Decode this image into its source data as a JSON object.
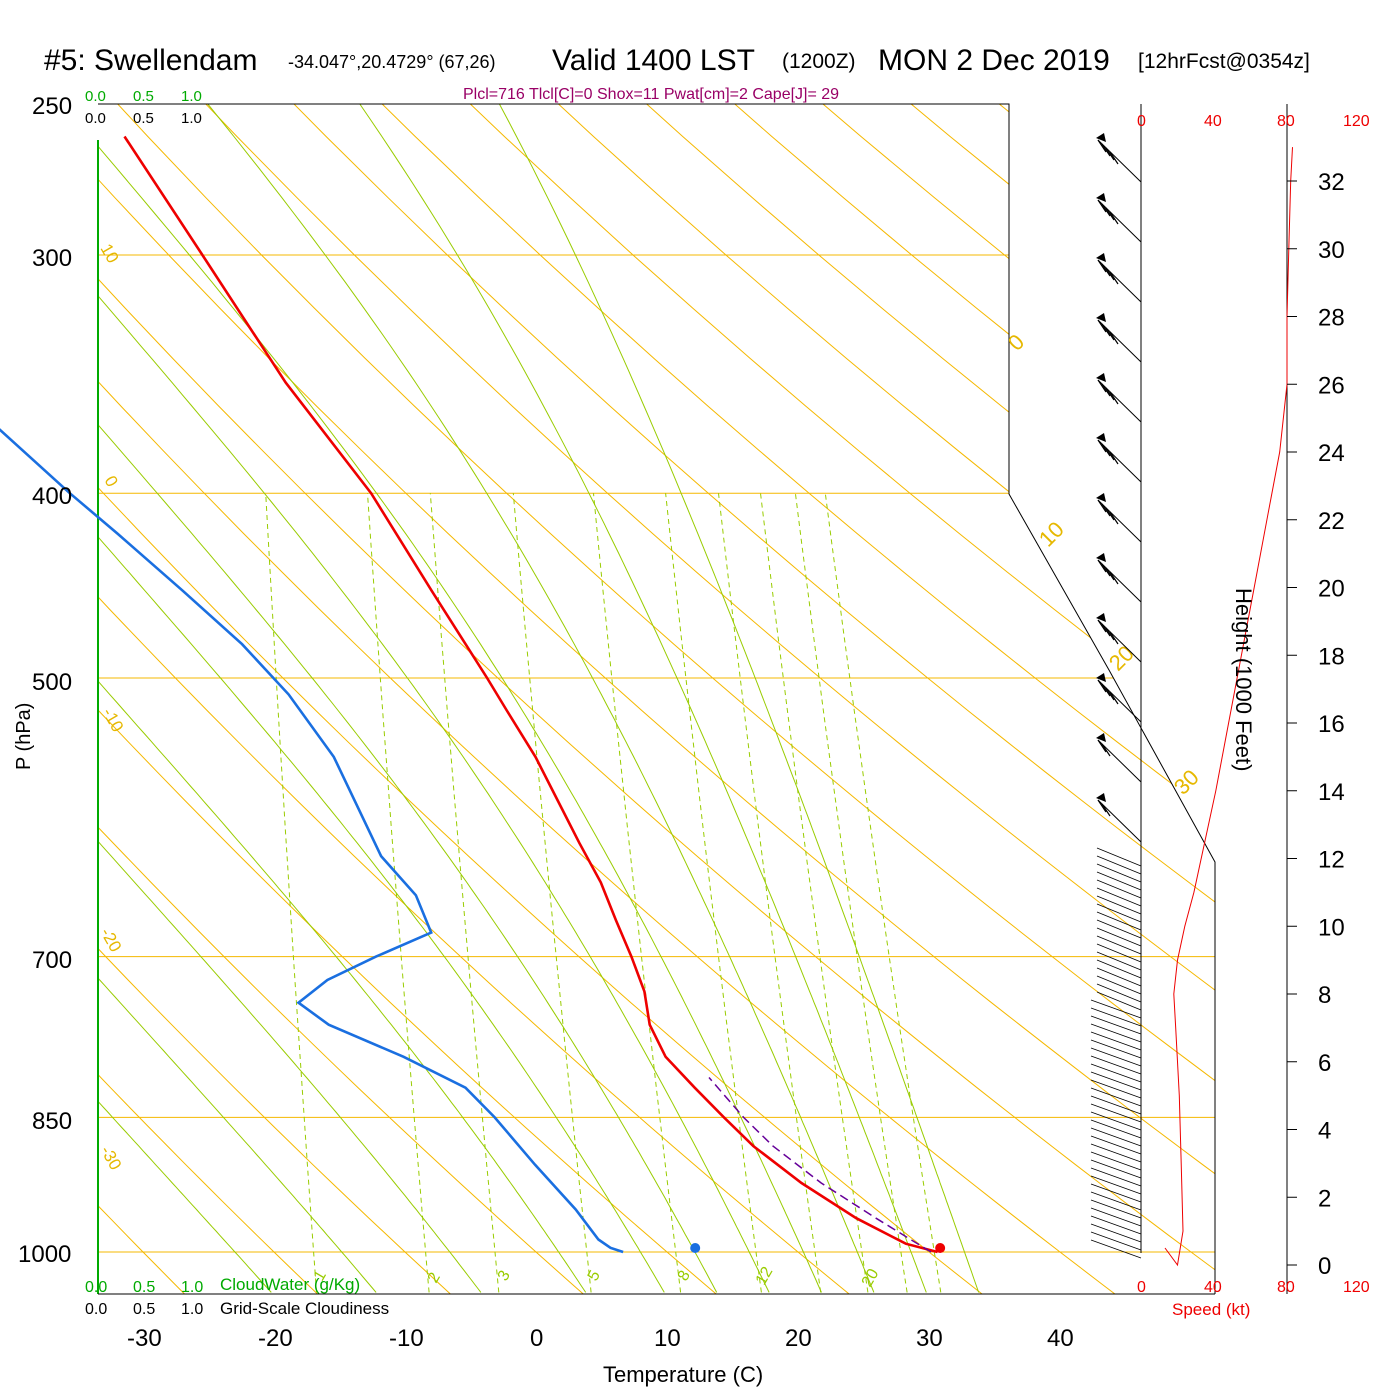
{
  "header": {
    "station": "#5: Swellendam",
    "coords": "-34.047°,20.4729° (67,26)",
    "valid": "Valid 1400 LST",
    "zulu": "(1200Z)",
    "date": "MON 2 Dec 2019",
    "forecast": "[12hrFcst@0354z]",
    "indices": "Plcl=716 Tlcl[C]=0 Shox=11 Pwat[cm]=2 Cape[J]= 29"
  },
  "colors": {
    "isobar": "#f5b800",
    "dry_adiabat": "#f5b800",
    "moist_adiabat": "#99cc00",
    "mixing_ratio": "#99cc00",
    "temperature": "#ee0000",
    "dewpoint": "#1a6fe0",
    "parcel": "#660099",
    "indices_text": "#990066",
    "cloud_axis": "#00aa00",
    "speed_axis": "#ee0000"
  },
  "cloud_axis": {
    "water_ticks": [
      "0.0",
      "0.5",
      "1.0"
    ],
    "cloudiness_ticks": [
      "0.0",
      "0.5",
      "1.0"
    ],
    "cloud_water_label": "CloudWater (g/Kg)",
    "cloudiness_label": "Grid-Scale Cloudiness"
  },
  "wind_speed_axis": {
    "ticks": [
      "0",
      "40",
      "80",
      "120"
    ],
    "label": "Speed (kt)"
  },
  "height_axis": {
    "label": "Height (1000 Feet)",
    "ticks": [
      "0",
      "2",
      "4",
      "6",
      "8",
      "10",
      "12",
      "14",
      "16",
      "18",
      "20",
      "22",
      "24",
      "26",
      "28",
      "30",
      "32"
    ]
  },
  "chart_data": {
    "type": "line",
    "title": "Valid 1400 LST (1200Z) MON 2 Dec 2019",
    "xlabel": "Temperature (C)",
    "ylabel": "P (hPa)",
    "x_ticks": [
      "-30",
      "-20",
      "-10",
      "0",
      "10",
      "20",
      "30",
      "40"
    ],
    "y_ticks": [
      "250",
      "300",
      "400",
      "500",
      "700",
      "850",
      "1000"
    ],
    "xlim": [
      -33,
      43
    ],
    "ylim": [
      1000,
      250
    ],
    "skew": "skew-T log-P",
    "dry_adiabat_labels": [
      "10",
      "0",
      "-10",
      "-20",
      "-30",
      "0",
      "10",
      "20",
      "30"
    ],
    "mixing_ratio_labels": [
      "1",
      "2",
      "3",
      "5",
      "8",
      "12",
      "20"
    ],
    "series": [
      {
        "name": "Temperature",
        "points": [
          [
            1000,
            30.5
          ],
          [
            990,
            28.0
          ],
          [
            960,
            24.0
          ],
          [
            920,
            19.5
          ],
          [
            880,
            15.5
          ],
          [
            850,
            13.0
          ],
          [
            820,
            10.5
          ],
          [
            790,
            8.0
          ],
          [
            760,
            6.5
          ],
          [
            730,
            5.8
          ],
          [
            700,
            4.5
          ],
          [
            670,
            3.0
          ],
          [
            640,
            1.5
          ],
          [
            610,
            -0.5
          ],
          [
            580,
            -2.5
          ],
          [
            550,
            -4.6
          ],
          [
            520,
            -7.2
          ],
          [
            500,
            -9.0
          ],
          [
            450,
            -14.0
          ],
          [
            400,
            -19.5
          ],
          [
            350,
            -27.0
          ],
          [
            300,
            -34.5
          ],
          [
            260,
            -41.5
          ]
        ]
      },
      {
        "name": "Dewpoint",
        "points": [
          [
            1000,
            6.5
          ],
          [
            995,
            5.5
          ],
          [
            985,
            4.5
          ],
          [
            950,
            2.5
          ],
          [
            900,
            -1.0
          ],
          [
            850,
            -4.5
          ],
          [
            820,
            -7.0
          ],
          [
            790,
            -12.0
          ],
          [
            760,
            -18.0
          ],
          [
            740,
            -20.5
          ],
          [
            720,
            -18.5
          ],
          [
            700,
            -15.0
          ],
          [
            680,
            -11.0
          ],
          [
            650,
            -12.5
          ],
          [
            620,
            -15.5
          ],
          [
            580,
            -18.0
          ],
          [
            550,
            -20.0
          ],
          [
            510,
            -24.0
          ],
          [
            480,
            -28.0
          ],
          [
            450,
            -33.0
          ],
          [
            420,
            -38.5
          ],
          [
            400,
            -42.5
          ],
          [
            370,
            -48.5
          ],
          [
            350,
            -52.0
          ],
          [
            320,
            -55.0
          ],
          [
            300,
            -56.0
          ],
          [
            280,
            -57.0
          ],
          [
            260,
            -58.0
          ]
        ]
      },
      {
        "name": "Parcel",
        "points": [
          [
            1000,
            30.0
          ],
          [
            960,
            25.5
          ],
          [
            920,
            21.0
          ],
          [
            880,
            17.0
          ],
          [
            850,
            14.5
          ],
          [
            810,
            11.5
          ]
        ]
      }
    ],
    "surface_markers": {
      "temperature": 30.7,
      "dewpoint": 12.0
    },
    "wind_speed_profile": [
      [
        0,
        20
      ],
      [
        1,
        23
      ],
      [
        3,
        22
      ],
      [
        5,
        21
      ],
      [
        7,
        19
      ],
      [
        8,
        18
      ],
      [
        9,
        20
      ],
      [
        10,
        24
      ],
      [
        11,
        29
      ],
      [
        12,
        33
      ],
      [
        14,
        41
      ],
      [
        16,
        48
      ],
      [
        18,
        55
      ],
      [
        20,
        62
      ],
      [
        22,
        69
      ],
      [
        24,
        76
      ],
      [
        26,
        80
      ],
      [
        28,
        80
      ],
      [
        30,
        81
      ],
      [
        32,
        82
      ],
      [
        33,
        83
      ]
    ]
  }
}
